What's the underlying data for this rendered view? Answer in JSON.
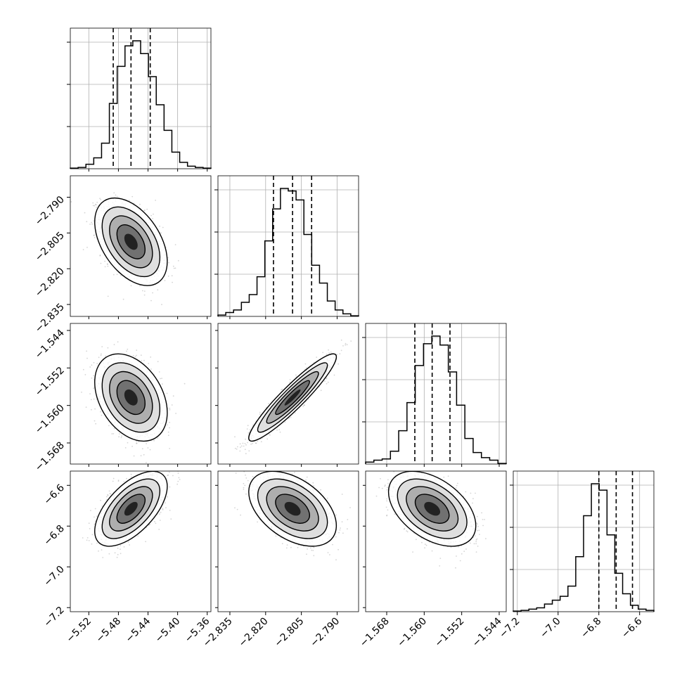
{
  "chart_data": {
    "type": "corner",
    "grid": true,
    "colors": {
      "line": "#000000",
      "points": "#888888",
      "grid": "#b0b0b0"
    },
    "params": [
      {
        "range": [
          -5.545,
          -5.355
        ],
        "ticks": [
          -5.52,
          -5.48,
          -5.44,
          -5.4,
          -5.36
        ],
        "tick_labels": [
          "−5.52",
          "−5.48",
          "−5.44",
          "−5.40",
          "−5.36"
        ],
        "quantiles": [
          -5.487,
          -5.463,
          -5.437
        ],
        "hist_bins": [
          0.005,
          0.01,
          0.035,
          0.085,
          0.2,
          0.51,
          0.8,
          0.96,
          1.0,
          0.9,
          0.72,
          0.5,
          0.3,
          0.13,
          0.05,
          0.02,
          0.01,
          0.005
        ]
      },
      {
        "range": [
          -2.84,
          -2.781
        ],
        "ticks": [
          -2.835,
          -2.82,
          -2.805,
          -2.79
        ],
        "tick_labels": [
          "−2.835",
          "−2.820",
          "−2.805",
          "−2.790"
        ],
        "quantiles": [
          -2.8167,
          -2.8087,
          -2.8007
        ],
        "hist_bins": [
          0.01,
          0.03,
          0.05,
          0.11,
          0.17,
          0.31,
          0.59,
          0.84,
          1.0,
          0.98,
          0.91,
          0.64,
          0.4,
          0.26,
          0.12,
          0.05,
          0.02,
          0.005
        ]
      },
      {
        "range": [
          -1.5725,
          -1.5425
        ],
        "ticks": [
          -1.568,
          -1.56,
          -1.552,
          -1.544
        ],
        "tick_labels": [
          "−1.568",
          "−1.560",
          "−1.552",
          "−1.544"
        ],
        "quantiles": [
          -1.562,
          -1.5583,
          -1.5545
        ],
        "hist_bins": [
          0.015,
          0.03,
          0.04,
          0.1,
          0.26,
          0.48,
          0.77,
          0.94,
          1.0,
          0.93,
          0.72,
          0.46,
          0.2,
          0.09,
          0.05,
          0.03,
          0.005
        ]
      },
      {
        "range": [
          -7.22,
          -6.53
        ],
        "ticks": [
          -7.2,
          -7.0,
          -6.8,
          -6.6
        ],
        "tick_labels": [
          "−7.2",
          "−7.0",
          "−6.8",
          "−6.6"
        ],
        "quantiles": [
          -6.8,
          -6.715,
          -6.635
        ],
        "hist_bins": [
          0.005,
          0.01,
          0.02,
          0.03,
          0.06,
          0.09,
          0.12,
          0.2,
          0.43,
          0.75,
          1.0,
          0.95,
          0.6,
          0.3,
          0.14,
          0.05,
          0.02,
          0.01
        ]
      }
    ],
    "pairs": [
      {
        "row": 1,
        "col": 0,
        "mean": [
          -5.463,
          -2.8087
        ],
        "sd": [
          0.02,
          0.0075
        ],
        "rho": -0.45
      },
      {
        "row": 2,
        "col": 0,
        "mean": [
          -5.463,
          -1.5583
        ],
        "sd": [
          0.02,
          0.0038
        ],
        "rho": -0.35
      },
      {
        "row": 2,
        "col": 1,
        "mean": [
          -2.8087,
          -1.5583
        ],
        "sd": [
          0.0075,
          0.0038
        ],
        "rho": 0.93
      },
      {
        "row": 3,
        "col": 0,
        "mean": [
          -5.463,
          -6.715
        ],
        "sd": [
          0.02,
          0.075
        ],
        "rho": 0.6
      },
      {
        "row": 3,
        "col": 1,
        "mean": [
          -2.8087,
          -6.715
        ],
        "sd": [
          0.0075,
          0.075
        ],
        "rho": -0.45
      },
      {
        "row": 3,
        "col": 2,
        "mean": [
          -1.5583,
          -6.715
        ],
        "sd": [
          0.0038,
          0.075
        ],
        "rho": -0.45
      }
    ]
  }
}
